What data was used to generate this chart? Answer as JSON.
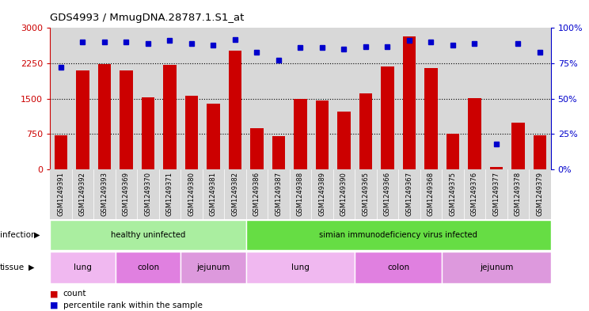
{
  "title": "GDS4993 / MmugDNA.28787.1.S1_at",
  "samples": [
    "GSM1249391",
    "GSM1249392",
    "GSM1249393",
    "GSM1249369",
    "GSM1249370",
    "GSM1249371",
    "GSM1249380",
    "GSM1249381",
    "GSM1249382",
    "GSM1249386",
    "GSM1249387",
    "GSM1249388",
    "GSM1249389",
    "GSM1249390",
    "GSM1249365",
    "GSM1249366",
    "GSM1249367",
    "GSM1249368",
    "GSM1249375",
    "GSM1249376",
    "GSM1249377",
    "GSM1249378",
    "GSM1249379"
  ],
  "counts": [
    730,
    2100,
    2230,
    2100,
    1530,
    2220,
    1560,
    1390,
    2520,
    870,
    710,
    1500,
    1460,
    1230,
    1620,
    2180,
    2820,
    2150,
    760,
    1510,
    55,
    1000,
    730
  ],
  "percentiles": [
    72,
    90,
    90,
    90,
    89,
    91,
    89,
    88,
    92,
    83,
    77,
    86,
    86,
    85,
    87,
    87,
    91,
    90,
    88,
    89,
    18,
    89,
    83
  ],
  "bar_color": "#cc0000",
  "percentile_color": "#0000cc",
  "ylim_left": [
    0,
    3000
  ],
  "ylim_right": [
    0,
    100
  ],
  "yticks_left": [
    0,
    750,
    1500,
    2250,
    3000
  ],
  "yticks_right": [
    0,
    25,
    50,
    75,
    100
  ],
  "infection_groups": [
    {
      "label": "healthy uninfected",
      "start": 0,
      "end": 9,
      "color": "#aaeea0"
    },
    {
      "label": "simian immunodeficiency virus infected",
      "start": 9,
      "end": 23,
      "color": "#66dd44"
    }
  ],
  "tissue_groups": [
    {
      "label": "lung",
      "start": 0,
      "end": 3,
      "color": "#f0b8f0"
    },
    {
      "label": "colon",
      "start": 3,
      "end": 6,
      "color": "#e080e0"
    },
    {
      "label": "jejunum",
      "start": 6,
      "end": 9,
      "color": "#dd99dd"
    },
    {
      "label": "lung",
      "start": 9,
      "end": 14,
      "color": "#f0b8f0"
    },
    {
      "label": "colon",
      "start": 14,
      "end": 18,
      "color": "#e080e0"
    },
    {
      "label": "jejunum",
      "start": 18,
      "end": 23,
      "color": "#dd99dd"
    }
  ],
  "left_axis_color": "#cc0000",
  "right_axis_color": "#0000cc",
  "plot_bg_color": "#d8d8d8",
  "fig_bg_color": "#ffffff"
}
